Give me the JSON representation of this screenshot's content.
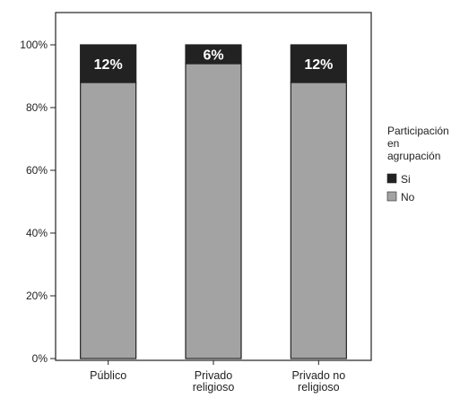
{
  "chart_data": {
    "type": "bar",
    "stacked": true,
    "percent_stacked": true,
    "categories": [
      "Público",
      "Privado religioso",
      "Privado no religioso"
    ],
    "series": [
      {
        "name": "No",
        "values": [
          88,
          94,
          88
        ],
        "color": "#a3a3a3"
      },
      {
        "name": "Si",
        "values": [
          12,
          6,
          12
        ],
        "color": "#222222"
      }
    ],
    "data_labels": [
      "12%",
      "6%",
      "12%"
    ],
    "ylim": [
      0,
      100
    ],
    "yticks": [
      "0%",
      "20%",
      "40%",
      "60%",
      "80%",
      "100%"
    ],
    "xlabel": "",
    "ylabel": "",
    "grid": false,
    "legend": {
      "title": "Participación en agrupación",
      "placement": "right",
      "items": [
        {
          "label": "Si",
          "color": "#222222"
        },
        {
          "label": "No",
          "color": "#a3a3a3"
        }
      ]
    }
  }
}
